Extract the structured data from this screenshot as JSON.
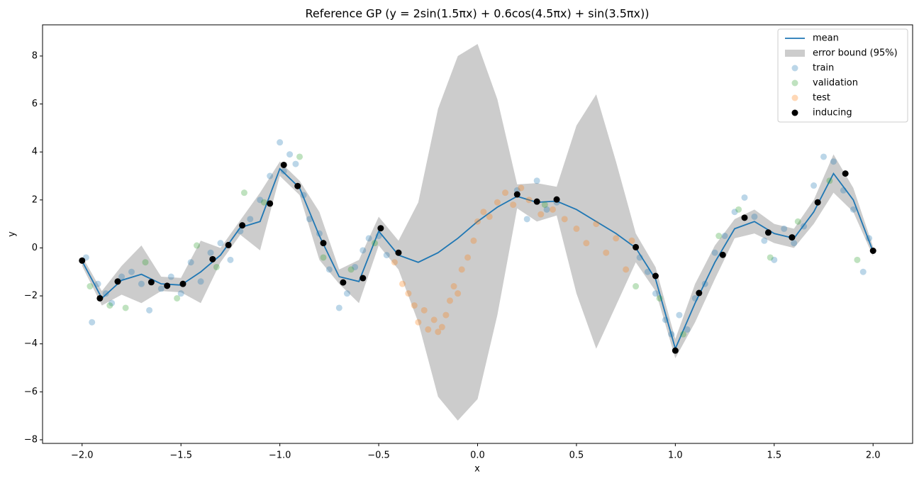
{
  "chart_data": {
    "type": "scatter",
    "title": "Reference GP (y = 2sin(1.5πx) + 0.6cos(4.5πx) + sin(3.5πx))",
    "xlabel": "x",
    "ylabel": "y",
    "xlim": [
      -2.2,
      2.2
    ],
    "ylim": [
      -8.15,
      9.3
    ],
    "xticks": [
      {
        "value": -2,
        "label": "−2.0"
      },
      {
        "value": -1.5,
        "label": "−1.5"
      },
      {
        "value": -1,
        "label": "−1.0"
      },
      {
        "value": -0.5,
        "label": "−0.5"
      },
      {
        "value": 0,
        "label": "0.0"
      },
      {
        "value": 0.5,
        "label": "0.5"
      },
      {
        "value": 1,
        "label": "1.0"
      },
      {
        "value": 1.5,
        "label": "1.5"
      },
      {
        "value": 2,
        "label": "2.0"
      }
    ],
    "yticks": [
      {
        "value": -8,
        "label": "−8"
      },
      {
        "value": -6,
        "label": "−6"
      },
      {
        "value": -4,
        "label": "−4"
      },
      {
        "value": -2,
        "label": "−2"
      },
      0,
      2,
      4,
      6,
      8
    ],
    "legend": "upper right",
    "series": [
      {
        "name": "mean",
        "type": "line",
        "color": "#1f77b4",
        "x": [
          -2,
          -1.9,
          -1.8,
          -1.7,
          -1.6,
          -1.5,
          -1.4,
          -1.3,
          -1.2,
          -1.1,
          -1,
          -0.9,
          -0.8,
          -0.7,
          -0.6,
          -0.5,
          -0.4,
          -0.3,
          -0.2,
          -0.1,
          0,
          0.1,
          0.2,
          0.3,
          0.4,
          0.5,
          0.6,
          0.7,
          0.8,
          0.9,
          1,
          1.1,
          1.2,
          1.3,
          1.4,
          1.5,
          1.6,
          1.7,
          1.8,
          1.9,
          2
        ],
        "values": [
          -0.55,
          -2.1,
          -1.35,
          -1.1,
          -1.5,
          -1.55,
          -1.0,
          -0.3,
          0.85,
          1.1,
          3.3,
          2.5,
          0.5,
          -1.2,
          -1.4,
          0.7,
          -0.3,
          -0.6,
          -0.2,
          0.4,
          1.1,
          1.7,
          2.15,
          1.9,
          1.95,
          1.6,
          1.1,
          0.6,
          0.0,
          -1.3,
          -4.2,
          -2.3,
          -0.6,
          0.8,
          1.1,
          0.6,
          0.4,
          1.5,
          3.1,
          2.0,
          -0.15
        ]
      },
      {
        "name": "error bound (95%)",
        "type": "band",
        "color": "#cccccc",
        "x": [
          -2,
          -1.9,
          -1.8,
          -1.7,
          -1.6,
          -1.5,
          -1.4,
          -1.3,
          -1.2,
          -1.1,
          -1,
          -0.9,
          -0.8,
          -0.7,
          -0.6,
          -0.5,
          -0.4,
          -0.3,
          -0.2,
          -0.1,
          0,
          0.1,
          0.2,
          0.3,
          0.4,
          0.5,
          0.6,
          0.7,
          0.8,
          0.9,
          1,
          1.1,
          1.2,
          1.3,
          1.4,
          1.5,
          1.6,
          1.7,
          1.8,
          1.9,
          2
        ],
        "upper": [
          -0.35,
          -1.8,
          -0.75,
          0.1,
          -1.2,
          -1.25,
          0.3,
          0.0,
          1.15,
          2.3,
          3.6,
          2.8,
          1.5,
          -0.9,
          -0.5,
          1.3,
          0.3,
          1.9,
          5.8,
          8.0,
          8.5,
          6.2,
          2.65,
          2.7,
          2.55,
          5.1,
          6.4,
          3.6,
          0.6,
          -0.8,
          -3.8,
          -1.5,
          0.1,
          1.2,
          1.6,
          1.0,
          0.8,
          2.0,
          3.9,
          2.5,
          0.05
        ],
        "lower": [
          -0.75,
          -2.4,
          -1.95,
          -2.3,
          -1.8,
          -1.85,
          -2.3,
          -0.6,
          0.55,
          -0.1,
          3.0,
          2.2,
          -0.5,
          -1.5,
          -2.3,
          0.1,
          -0.9,
          -3.1,
          -6.2,
          -7.2,
          -6.3,
          -2.8,
          1.65,
          1.1,
          1.35,
          -1.9,
          -4.2,
          -2.4,
          -0.6,
          -1.8,
          -4.6,
          -3.1,
          -1.3,
          0.4,
          0.6,
          0.2,
          0.0,
          1.0,
          2.3,
          1.5,
          -0.35
        ]
      },
      {
        "name": "train",
        "type": "scatter",
        "color": "#1f77b4",
        "alpha": 0.3,
        "x": [
          -1.98,
          -1.95,
          -1.92,
          -1.88,
          -1.85,
          -1.8,
          -1.75,
          -1.7,
          -1.66,
          -1.6,
          -1.55,
          -1.5,
          -1.45,
          -1.4,
          -1.35,
          -1.3,
          -1.25,
          -1.2,
          -1.15,
          -1.1,
          -1.05,
          -1.0,
          -0.98,
          -0.95,
          -0.92,
          -0.88,
          -0.85,
          -0.8,
          -0.75,
          -0.7,
          -0.66,
          -0.62,
          -0.58,
          -0.55,
          -0.5,
          -0.46,
          0.2,
          0.25,
          0.3,
          0.35,
          0.4,
          0.82,
          0.86,
          0.9,
          0.95,
          0.98,
          1.02,
          1.06,
          1.1,
          1.15,
          1.2,
          1.25,
          1.3,
          1.35,
          1.4,
          1.45,
          1.5,
          1.55,
          1.6,
          1.65,
          1.7,
          1.75,
          1.8,
          1.85,
          1.9,
          1.95,
          1.98
        ],
        "values": [
          -0.4,
          -3.1,
          -1.5,
          -1.9,
          -2.3,
          -1.2,
          -1.0,
          -1.5,
          -2.6,
          -1.7,
          -1.2,
          -1.9,
          -0.6,
          -1.4,
          -0.2,
          0.2,
          -0.5,
          0.7,
          1.2,
          2.0,
          3.0,
          4.4,
          3.2,
          3.9,
          3.5,
          2.2,
          1.2,
          0.6,
          -0.9,
          -2.5,
          -1.9,
          -0.8,
          -0.1,
          0.4,
          0.5,
          -0.3,
          2.4,
          1.2,
          2.8,
          1.6,
          1.9,
          -0.4,
          -1.0,
          -1.9,
          -3.0,
          -3.6,
          -2.8,
          -3.4,
          -2.1,
          -1.5,
          -0.2,
          0.5,
          1.5,
          2.1,
          1.3,
          0.3,
          -0.5,
          0.8,
          0.2,
          0.9,
          2.6,
          3.8,
          3.6,
          2.4,
          1.6,
          -1.0,
          0.4
        ]
      },
      {
        "name": "validation",
        "type": "scatter",
        "color": "#2ca02c",
        "alpha": 0.3,
        "x": [
          -1.96,
          -1.86,
          -1.78,
          -1.68,
          -1.52,
          -1.42,
          -1.32,
          -1.18,
          -1.08,
          -0.9,
          -0.78,
          -0.64,
          -0.52,
          0.34,
          0.8,
          0.92,
          1.04,
          1.22,
          1.32,
          1.48,
          1.62,
          1.78,
          1.92
        ],
        "values": [
          -1.6,
          -2.4,
          -2.5,
          -0.6,
          -2.1,
          0.1,
          -0.8,
          2.3,
          1.9,
          3.8,
          -0.4,
          -0.9,
          0.2,
          1.8,
          -1.6,
          -2.1,
          -3.6,
          0.5,
          1.6,
          -0.4,
          1.1,
          2.8,
          -0.5
        ]
      },
      {
        "name": "test",
        "type": "scatter",
        "color": "#ff7f0e",
        "alpha": 0.3,
        "x": [
          -0.42,
          -0.38,
          -0.35,
          -0.32,
          -0.3,
          -0.27,
          -0.25,
          -0.22,
          -0.2,
          -0.18,
          -0.16,
          -0.14,
          -0.12,
          -0.1,
          -0.08,
          -0.05,
          -0.02,
          0.0,
          0.03,
          0.06,
          0.1,
          0.14,
          0.18,
          0.22,
          0.26,
          0.32,
          0.38,
          0.44,
          0.5,
          0.55,
          0.6,
          0.65,
          0.7,
          0.75,
          0.78
        ],
        "values": [
          -0.6,
          -1.5,
          -1.9,
          -2.4,
          -3.1,
          -2.6,
          -3.4,
          -3.0,
          -3.5,
          -3.3,
          -2.8,
          -2.2,
          -1.6,
          -1.9,
          -0.9,
          -0.4,
          0.3,
          1.1,
          1.5,
          1.3,
          1.9,
          2.3,
          1.8,
          2.5,
          2.0,
          1.4,
          1.6,
          1.2,
          0.8,
          0.2,
          1.0,
          -0.2,
          0.4,
          -0.9,
          0.3
        ]
      },
      {
        "name": "inducing",
        "type": "scatter",
        "color": "#000000",
        "alpha": 1,
        "x": [
          -2.0,
          -1.91,
          -1.82,
          -1.65,
          -1.57,
          -1.49,
          -1.34,
          -1.26,
          -1.19,
          -1.05,
          -0.98,
          -0.91,
          -0.78,
          -0.68,
          -0.58,
          -0.49,
          -0.4,
          0.2,
          0.3,
          0.4,
          0.8,
          0.9,
          1.0,
          1.12,
          1.24,
          1.35,
          1.47,
          1.59,
          1.72,
          1.86,
          2.0
        ],
        "values": [
          -0.53,
          -2.1,
          -1.4,
          -1.43,
          -1.58,
          -1.5,
          -0.47,
          0.12,
          0.94,
          1.85,
          3.46,
          2.58,
          0.2,
          -1.44,
          -1.26,
          0.82,
          -0.2,
          2.23,
          1.93,
          2.02,
          0.03,
          -1.17,
          -4.28,
          -1.88,
          -0.29,
          1.26,
          0.64,
          0.44,
          1.9,
          3.1,
          -0.12
        ]
      }
    ]
  }
}
